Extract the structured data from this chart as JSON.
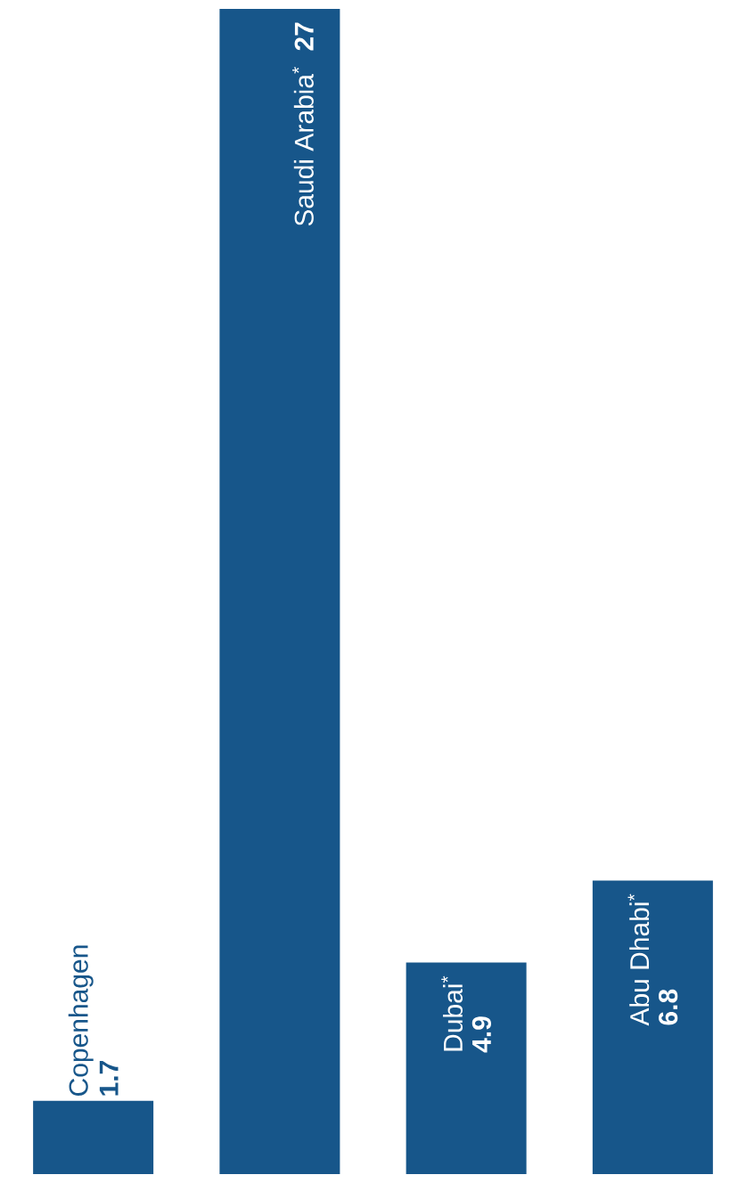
{
  "chart_data": {
    "type": "bar",
    "categories": [
      "Copenhagen",
      "Saudi Arabia$^{*}$",
      "Dubai$^{*}$",
      "Abu Dhabi$^{*}$"
    ],
    "values": [
      1.7,
      27,
      4.9,
      6.8
    ],
    "color": "#17568a",
    "data_labels": true
  }
}
